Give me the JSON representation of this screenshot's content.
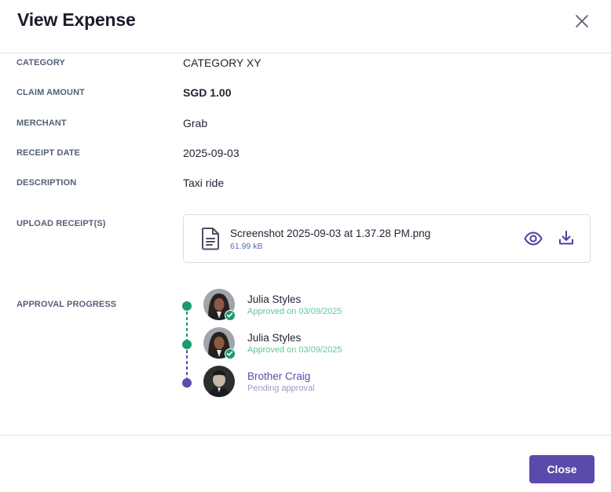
{
  "header": {
    "title": "View Expense",
    "close_icon": "close-icon"
  },
  "fields": {
    "category": {
      "label": "CATEGORY",
      "value": "CATEGORY XY"
    },
    "claim_amount": {
      "label": "CLAIM AMOUNT",
      "value": "SGD 1.00"
    },
    "merchant": {
      "label": "MERCHANT",
      "value": "Grab"
    },
    "receipt_date": {
      "label": "RECEIPT DATE",
      "value": "2025-09-03"
    },
    "description": {
      "label": "DESCRIPTION",
      "value": "Taxi ride"
    },
    "upload_receipts": {
      "label": "UPLOAD RECEIPT(S)"
    },
    "approval_progress": {
      "label": "APPROVAL PROGRESS"
    }
  },
  "receipt": {
    "file_name": "Screenshot 2025-09-03 at 1.37.28 PM.png",
    "file_size": "61.99 kB",
    "icons": [
      "document-icon",
      "eye-icon",
      "download-icon"
    ]
  },
  "approvals": [
    {
      "name": "Julia Styles",
      "status": "Approved on 03/09/2025",
      "state": "approved"
    },
    {
      "name": "Julia Styles",
      "status": "Approved on 03/09/2025",
      "state": "approved"
    },
    {
      "name": "Brother Craig",
      "status": "Pending approval",
      "state": "pending"
    }
  ],
  "footer": {
    "close_label": "Close"
  },
  "colors": {
    "accent": "#5b4aab",
    "approved": "#1a9b6e",
    "pending": "#5d4bb0",
    "label": "#54607a"
  }
}
